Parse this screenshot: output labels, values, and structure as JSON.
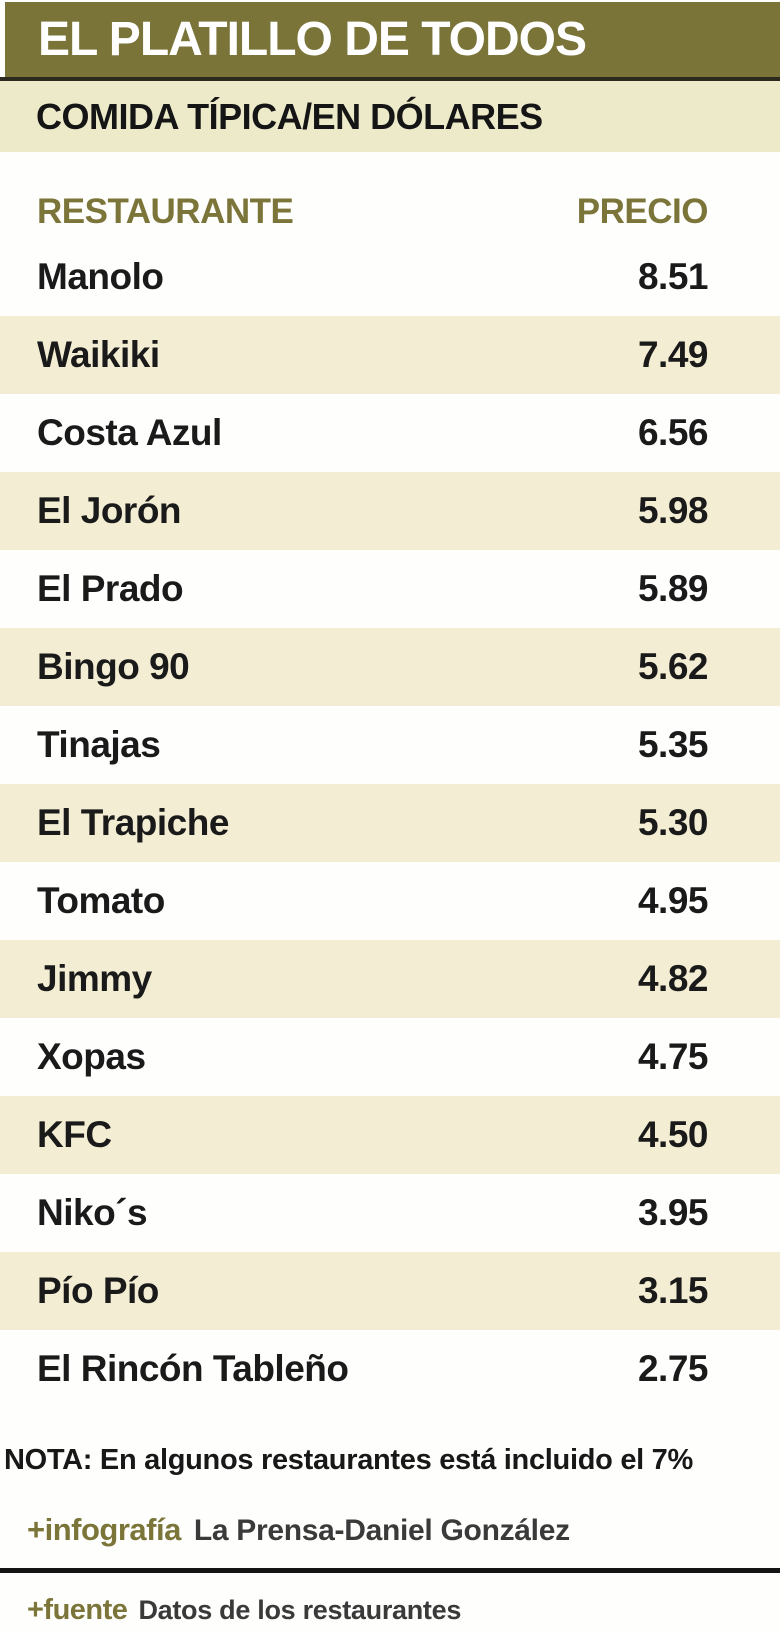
{
  "header": {
    "title": "EL PLATILLO DE TODOS",
    "subtitle": "COMIDA TÍPICA/EN DÓLARES"
  },
  "table": {
    "col_restaurant": "RESTAURANTE",
    "col_price": "PRECIO",
    "rows": [
      {
        "name": "Manolo",
        "price": "8.51"
      },
      {
        "name": "Waikiki",
        "price": "7.49"
      },
      {
        "name": "Costa Azul",
        "price": "6.56"
      },
      {
        "name": "El Jorón",
        "price": "5.98"
      },
      {
        "name": "El Prado",
        "price": "5.89"
      },
      {
        "name": "Bingo 90",
        "price": "5.62"
      },
      {
        "name": "Tinajas",
        "price": "5.35"
      },
      {
        "name": "El Trapiche",
        "price": "5.30"
      },
      {
        "name": "Tomato",
        "price": "4.95"
      },
      {
        "name": "Jimmy",
        "price": "4.82"
      },
      {
        "name": "Xopas",
        "price": "4.75"
      },
      {
        "name": "KFC",
        "price": "4.50"
      },
      {
        "name": "Niko´s",
        "price": "3.95"
      },
      {
        "name": "Pío Pío",
        "price": "3.15"
      },
      {
        "name": "El Rincón Tableño",
        "price": "2.75"
      }
    ]
  },
  "footer": {
    "note": "NOTA: En algunos restaurantes está incluido el 7%",
    "infographic_label": "+infografía",
    "infographic_credit": "La Prensa-Daniel González",
    "source_label": "+fuente",
    "source_credit": "Datos de los restaurantes"
  },
  "colors": {
    "olive": "#7a7439",
    "olive_text": "#7c753a",
    "subtitle_bg": "#edeaca",
    "stripe_bg": "#f3eed3",
    "dark_rule": "#2c2a1e",
    "black_rule": "#141414"
  },
  "chart_data": {
    "type": "table",
    "title": "EL PLATILLO DE TODOS",
    "subtitle": "COMIDA TÍPICA/EN DÓLARES",
    "columns": [
      "RESTAURANTE",
      "PRECIO"
    ],
    "categories": [
      "Manolo",
      "Waikiki",
      "Costa Azul",
      "El Jorón",
      "El Prado",
      "Bingo 90",
      "Tinajas",
      "El Trapiche",
      "Tomato",
      "Jimmy",
      "Xopas",
      "KFC",
      "Niko´s",
      "Pío Pío",
      "El Rincón Tableño"
    ],
    "values": [
      8.51,
      7.49,
      6.56,
      5.98,
      5.89,
      5.62,
      5.35,
      5.3,
      4.95,
      4.82,
      4.75,
      4.5,
      3.95,
      3.15,
      2.75
    ],
    "unit": "dólares",
    "note": "NOTA: En algunos restaurantes está incluido el 7%",
    "credit": "La Prensa-Daniel González",
    "source": "Datos de los restaurantes"
  }
}
